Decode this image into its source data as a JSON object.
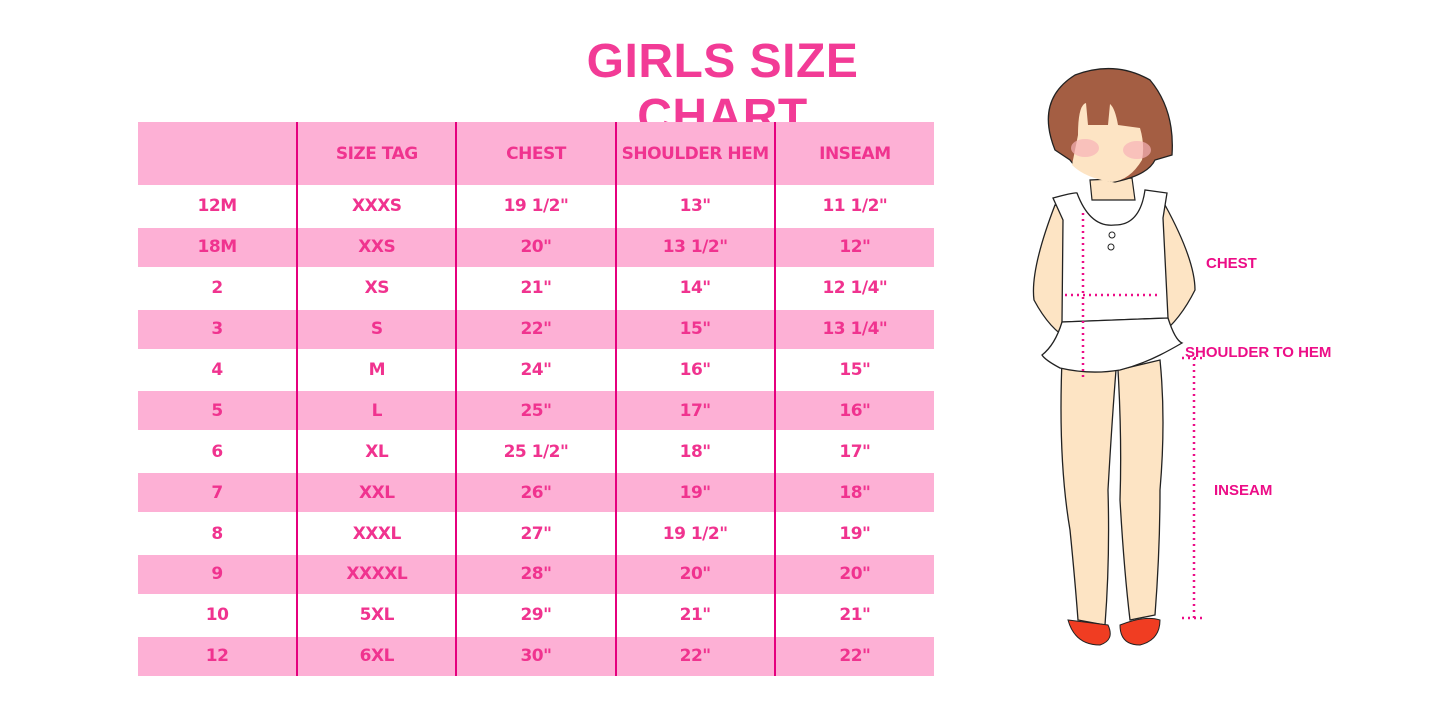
{
  "title": "GIRLS SIZE CHART",
  "table": {
    "headers": [
      "",
      "SIZE TAG",
      "CHEST",
      "SHOULDER HEM",
      "INSEAM"
    ],
    "rows": [
      [
        "12M",
        "XXXS",
        "19 1/2\"",
        "13\"",
        "11 1/2\""
      ],
      [
        "18M",
        "XXS",
        "20\"",
        "13 1/2\"",
        "12\""
      ],
      [
        "2",
        "XS",
        "21\"",
        "14\"",
        "12 1/4\""
      ],
      [
        "3",
        "S",
        "22\"",
        "15\"",
        "13 1/4\""
      ],
      [
        "4",
        "M",
        "24\"",
        "16\"",
        "15\""
      ],
      [
        "5",
        "L",
        "25\"",
        "17\"",
        "16\""
      ],
      [
        "6",
        "XL",
        "25 1/2\"",
        "18\"",
        "17\""
      ],
      [
        "7",
        "XXL",
        "26\"",
        "19\"",
        "18\""
      ],
      [
        "8",
        "XXXL",
        "27\"",
        "19 1/2\"",
        "19\""
      ],
      [
        "9",
        "XXXXL",
        "28\"",
        "20\"",
        "20\""
      ],
      [
        "10",
        "5XL",
        "29\"",
        "21\"",
        "21\""
      ],
      [
        "12",
        "6XL",
        "30\"",
        "22\"",
        "22\""
      ]
    ]
  },
  "figure": {
    "labels": {
      "chest": "CHEST",
      "shoulder_to_hem": "SHOULDER TO HEM",
      "inseam": "INSEAM"
    }
  },
  "colors": {
    "accent": "#f0338f",
    "row_pink": "#fdb0d5",
    "divider": "#e5007e"
  }
}
